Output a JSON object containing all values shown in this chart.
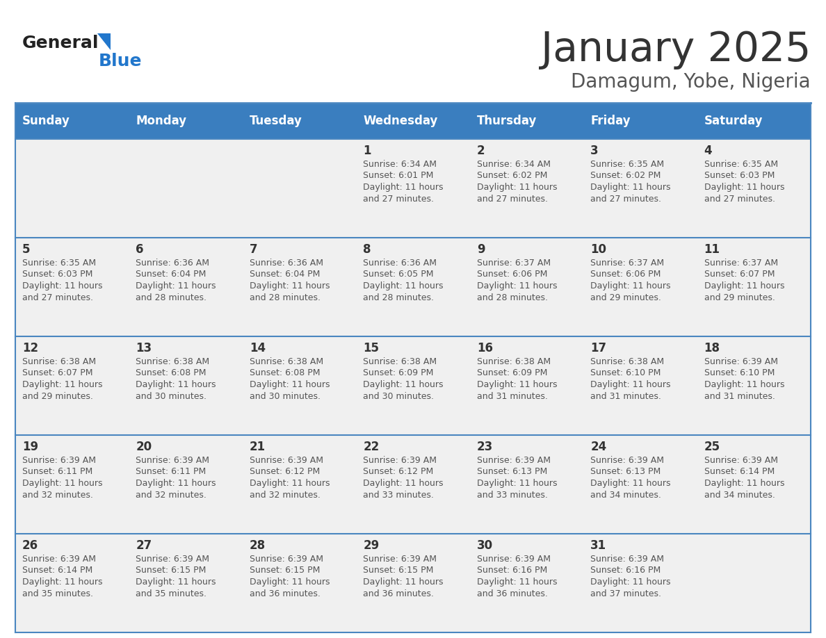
{
  "title": "January 2025",
  "subtitle": "Damagum, Yobe, Nigeria",
  "header_bg": "#3a7ebf",
  "header_text_color": "#ffffff",
  "day_names": [
    "Sunday",
    "Monday",
    "Tuesday",
    "Wednesday",
    "Thursday",
    "Friday",
    "Saturday"
  ],
  "title_color": "#333333",
  "subtitle_color": "#555555",
  "cell_bg": "#f0f0f0",
  "week_border_color": "#4a86c0",
  "day_num_color": "#333333",
  "cell_text_color": "#555555",
  "logo_general_color": "#222222",
  "logo_blue_color": "#2277cc",
  "days_data": [
    {
      "day": 1,
      "col": 3,
      "row": 0,
      "sunrise": "6:34 AM",
      "sunset": "6:01 PM",
      "daylight_min": "27"
    },
    {
      "day": 2,
      "col": 4,
      "row": 0,
      "sunrise": "6:34 AM",
      "sunset": "6:02 PM",
      "daylight_min": "27"
    },
    {
      "day": 3,
      "col": 5,
      "row": 0,
      "sunrise": "6:35 AM",
      "sunset": "6:02 PM",
      "daylight_min": "27"
    },
    {
      "day": 4,
      "col": 6,
      "row": 0,
      "sunrise": "6:35 AM",
      "sunset": "6:03 PM",
      "daylight_min": "27"
    },
    {
      "day": 5,
      "col": 0,
      "row": 1,
      "sunrise": "6:35 AM",
      "sunset": "6:03 PM",
      "daylight_min": "27"
    },
    {
      "day": 6,
      "col": 1,
      "row": 1,
      "sunrise": "6:36 AM",
      "sunset": "6:04 PM",
      "daylight_min": "28"
    },
    {
      "day": 7,
      "col": 2,
      "row": 1,
      "sunrise": "6:36 AM",
      "sunset": "6:04 PM",
      "daylight_min": "28"
    },
    {
      "day": 8,
      "col": 3,
      "row": 1,
      "sunrise": "6:36 AM",
      "sunset": "6:05 PM",
      "daylight_min": "28"
    },
    {
      "day": 9,
      "col": 4,
      "row": 1,
      "sunrise": "6:37 AM",
      "sunset": "6:06 PM",
      "daylight_min": "28"
    },
    {
      "day": 10,
      "col": 5,
      "row": 1,
      "sunrise": "6:37 AM",
      "sunset": "6:06 PM",
      "daylight_min": "29"
    },
    {
      "day": 11,
      "col": 6,
      "row": 1,
      "sunrise": "6:37 AM",
      "sunset": "6:07 PM",
      "daylight_min": "29"
    },
    {
      "day": 12,
      "col": 0,
      "row": 2,
      "sunrise": "6:38 AM",
      "sunset": "6:07 PM",
      "daylight_min": "29"
    },
    {
      "day": 13,
      "col": 1,
      "row": 2,
      "sunrise": "6:38 AM",
      "sunset": "6:08 PM",
      "daylight_min": "30"
    },
    {
      "day": 14,
      "col": 2,
      "row": 2,
      "sunrise": "6:38 AM",
      "sunset": "6:08 PM",
      "daylight_min": "30"
    },
    {
      "day": 15,
      "col": 3,
      "row": 2,
      "sunrise": "6:38 AM",
      "sunset": "6:09 PM",
      "daylight_min": "30"
    },
    {
      "day": 16,
      "col": 4,
      "row": 2,
      "sunrise": "6:38 AM",
      "sunset": "6:09 PM",
      "daylight_min": "31"
    },
    {
      "day": 17,
      "col": 5,
      "row": 2,
      "sunrise": "6:38 AM",
      "sunset": "6:10 PM",
      "daylight_min": "31"
    },
    {
      "day": 18,
      "col": 6,
      "row": 2,
      "sunrise": "6:39 AM",
      "sunset": "6:10 PM",
      "daylight_min": "31"
    },
    {
      "day": 19,
      "col": 0,
      "row": 3,
      "sunrise": "6:39 AM",
      "sunset": "6:11 PM",
      "daylight_min": "32"
    },
    {
      "day": 20,
      "col": 1,
      "row": 3,
      "sunrise": "6:39 AM",
      "sunset": "6:11 PM",
      "daylight_min": "32"
    },
    {
      "day": 21,
      "col": 2,
      "row": 3,
      "sunrise": "6:39 AM",
      "sunset": "6:12 PM",
      "daylight_min": "32"
    },
    {
      "day": 22,
      "col": 3,
      "row": 3,
      "sunrise": "6:39 AM",
      "sunset": "6:12 PM",
      "daylight_min": "33"
    },
    {
      "day": 23,
      "col": 4,
      "row": 3,
      "sunrise": "6:39 AM",
      "sunset": "6:13 PM",
      "daylight_min": "33"
    },
    {
      "day": 24,
      "col": 5,
      "row": 3,
      "sunrise": "6:39 AM",
      "sunset": "6:13 PM",
      "daylight_min": "34"
    },
    {
      "day": 25,
      "col": 6,
      "row": 3,
      "sunrise": "6:39 AM",
      "sunset": "6:14 PM",
      "daylight_min": "34"
    },
    {
      "day": 26,
      "col": 0,
      "row": 4,
      "sunrise": "6:39 AM",
      "sunset": "6:14 PM",
      "daylight_min": "35"
    },
    {
      "day": 27,
      "col": 1,
      "row": 4,
      "sunrise": "6:39 AM",
      "sunset": "6:15 PM",
      "daylight_min": "35"
    },
    {
      "day": 28,
      "col": 2,
      "row": 4,
      "sunrise": "6:39 AM",
      "sunset": "6:15 PM",
      "daylight_min": "36"
    },
    {
      "day": 29,
      "col": 3,
      "row": 4,
      "sunrise": "6:39 AM",
      "sunset": "6:15 PM",
      "daylight_min": "36"
    },
    {
      "day": 30,
      "col": 4,
      "row": 4,
      "sunrise": "6:39 AM",
      "sunset": "6:16 PM",
      "daylight_min": "36"
    },
    {
      "day": 31,
      "col": 5,
      "row": 4,
      "sunrise": "6:39 AM",
      "sunset": "6:16 PM",
      "daylight_min": "37"
    }
  ]
}
